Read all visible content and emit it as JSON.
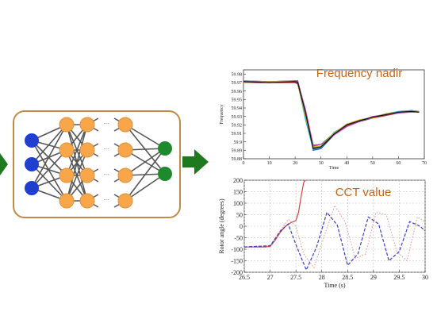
{
  "colors": {
    "input_node": "#1f3fd1",
    "hidden_node": "#f7a64a",
    "output_node": "#1e8a2e",
    "arrow": "#1f7a1f",
    "network_border": "#c08a4a",
    "annotation": "#c0661a"
  },
  "network": {
    "layers": [
      3,
      4,
      4,
      2
    ],
    "ellipsis": "..."
  },
  "chart_data": [
    {
      "type": "line",
      "title": "Frequency nadir",
      "xlabel": "Time",
      "ylabel": "Frequency",
      "xlim": [
        0,
        70
      ],
      "ylim": [
        59.88,
        59.985
      ],
      "x_ticks": [
        "0",
        "10",
        "20",
        "30",
        "40",
        "50",
        "60",
        "70"
      ],
      "y_ticks": [
        "59.98",
        "59.97",
        "59.96",
        "59.95",
        "59.94",
        "59.93",
        "59.92",
        "59.91",
        "59.9",
        "59.89",
        "59.88"
      ],
      "series": [
        {
          "color": "#1f3fd1",
          "x": [
            0,
            10,
            20,
            21,
            24,
            27,
            30,
            35,
            40,
            45,
            50,
            55,
            60,
            65,
            68
          ],
          "y": [
            59.972,
            59.971,
            59.972,
            59.972,
            59.935,
            59.89,
            59.892,
            59.908,
            59.92,
            59.924,
            59.928,
            59.933,
            59.935,
            59.937,
            59.936
          ]
        },
        {
          "color": "#2e9c2e",
          "x": [
            0,
            10,
            20,
            21,
            24,
            27,
            30,
            35,
            40,
            45,
            50,
            55,
            60,
            65,
            68
          ],
          "y": [
            59.971,
            59.97,
            59.971,
            59.969,
            59.928,
            59.895,
            59.897,
            59.91,
            59.921,
            59.925,
            59.929,
            59.932,
            59.935,
            59.936,
            59.935
          ]
        },
        {
          "color": "#d12a2a",
          "x": [
            0,
            10,
            20,
            21,
            24,
            27,
            30,
            35,
            40,
            45,
            50,
            55,
            60,
            65,
            68
          ],
          "y": [
            59.97,
            59.97,
            59.97,
            59.968,
            59.932,
            59.893,
            59.894,
            59.909,
            59.919,
            59.925,
            59.928,
            59.931,
            59.934,
            59.936,
            59.935
          ]
        },
        {
          "color": "#22b8c8",
          "x": [
            0,
            10,
            20,
            21,
            24,
            27,
            30,
            35,
            40,
            45,
            50,
            55,
            60,
            65,
            68
          ],
          "y": [
            59.972,
            59.971,
            59.971,
            59.97,
            59.926,
            59.891,
            59.893,
            59.911,
            59.92,
            59.926,
            59.929,
            59.933,
            59.936,
            59.937,
            59.936
          ]
        },
        {
          "color": "#b83cb8",
          "x": [
            0,
            10,
            20,
            21,
            24,
            27,
            30,
            35,
            40,
            45,
            50,
            55,
            60,
            65,
            68
          ],
          "y": [
            59.971,
            59.971,
            59.972,
            59.971,
            59.938,
            59.896,
            59.897,
            59.908,
            59.918,
            59.924,
            59.93,
            59.932,
            59.934,
            59.935,
            59.935
          ]
        },
        {
          "color": "#c8b020",
          "x": [
            0,
            10,
            20,
            21,
            24,
            27,
            30,
            35,
            40,
            45,
            50,
            55,
            60,
            65,
            68
          ],
          "y": [
            59.97,
            59.971,
            59.971,
            59.969,
            59.93,
            59.894,
            59.895,
            59.91,
            59.921,
            59.926,
            59.928,
            59.933,
            59.935,
            59.936,
            59.936
          ]
        },
        {
          "color": "#111111",
          "x": [
            0,
            10,
            20,
            21,
            24,
            27,
            30,
            35,
            40,
            45,
            50,
            55,
            60,
            65,
            68
          ],
          "y": [
            59.971,
            59.97,
            59.971,
            59.97,
            59.934,
            59.892,
            59.894,
            59.909,
            59.92,
            59.925,
            59.929,
            59.932,
            59.935,
            59.936,
            59.935
          ]
        }
      ]
    },
    {
      "type": "line",
      "title": "CCT value",
      "xlabel": "Time (s)",
      "ylabel": "Rotor angle (degrees)",
      "xlim": [
        26.5,
        30
      ],
      "ylim": [
        -200,
        200
      ],
      "x_ticks": [
        "26.5",
        "27",
        "27.5",
        "28",
        "28.5",
        "29",
        "29.5",
        "30"
      ],
      "y_ticks": [
        "200",
        "150",
        "100",
        "50",
        "0",
        "-50",
        "-100",
        "-150",
        "-200"
      ],
      "series": [
        {
          "color": "#d64040",
          "style": "solid",
          "x": [
            26.5,
            26.9,
            27.0,
            27.1,
            27.2,
            27.3,
            27.4,
            27.5,
            27.55,
            27.6,
            27.65,
            27.68
          ],
          "y": [
            -90,
            -90,
            -88,
            -60,
            -25,
            0,
            15,
            25,
            60,
            130,
            190,
            200
          ]
        },
        {
          "color": "#e8a0a0",
          "style": "dotted",
          "x": [
            26.5,
            27.0,
            27.2,
            27.35,
            27.5,
            27.65,
            27.85,
            28.05,
            28.25,
            28.45,
            28.65,
            28.85,
            29.05,
            29.25,
            29.45,
            29.65,
            29.85,
            30.0
          ],
          "y": [
            -90,
            -85,
            -20,
            30,
            0,
            -120,
            -180,
            -40,
            90,
            20,
            -140,
            -120,
            60,
            50,
            -110,
            -150,
            40,
            20
          ]
        },
        {
          "color": "#3b3bd0",
          "style": "dashed",
          "x": [
            26.5,
            27.0,
            27.2,
            27.35,
            27.5,
            27.7,
            27.9,
            28.1,
            28.3,
            28.5,
            28.7,
            28.9,
            29.1,
            29.3,
            29.5,
            29.7,
            29.9,
            30.0
          ],
          "y": [
            -90,
            -85,
            -20,
            10,
            -80,
            -190,
            -90,
            60,
            5,
            -170,
            -120,
            40,
            10,
            -150,
            -110,
            20,
            0,
            -20
          ]
        }
      ]
    }
  ]
}
